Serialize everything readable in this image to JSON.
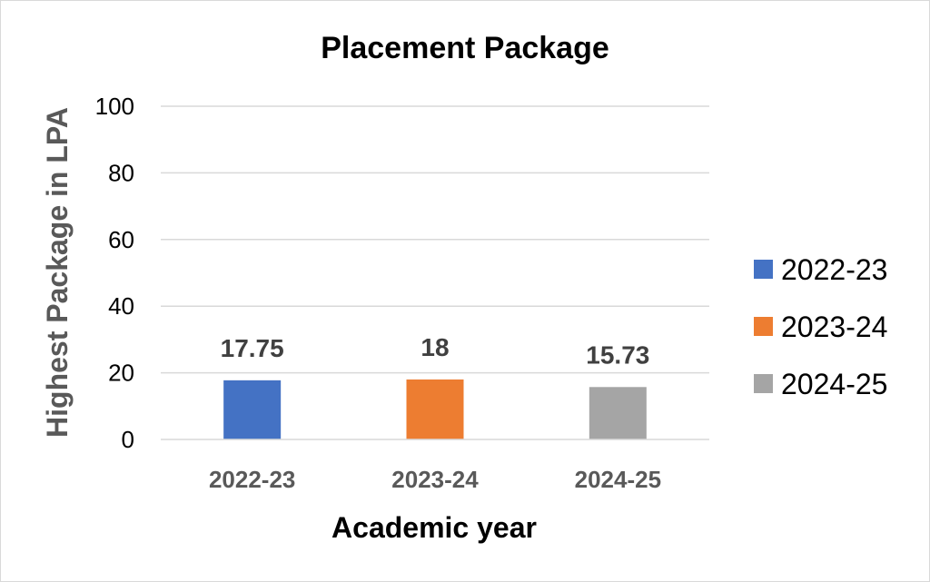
{
  "chart_data": {
    "type": "bar",
    "title": "Placement Package",
    "xlabel": "Academic year",
    "ylabel": "Highest Package in LPA",
    "categories": [
      "2022-23",
      "2023-24",
      "2024-25"
    ],
    "values": [
      17.75,
      18,
      15.73
    ],
    "data_labels": [
      "17.75",
      "18",
      "15.73"
    ],
    "colors": [
      "#4472c4",
      "#ed7d31",
      "#a5a5a5"
    ],
    "ylim": [
      0,
      100
    ],
    "yticks": [
      0,
      20,
      40,
      60,
      80,
      100
    ],
    "grid": true,
    "legend": {
      "position": "right",
      "entries": [
        "2022-23",
        "2023-24",
        "2024-25"
      ]
    }
  }
}
